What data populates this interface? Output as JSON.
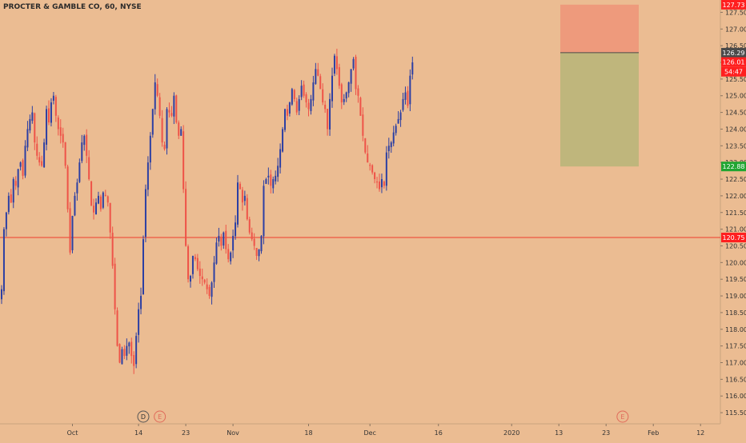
{
  "chart_data": {
    "type": "candlestick",
    "title": "PROCTER & GAMBLE CO, 60, NYSE",
    "ylim": [
      115.25,
      128.0
    ],
    "y_ticks": [
      "115.50",
      "116.00",
      "116.50",
      "117.00",
      "117.50",
      "118.00",
      "118.50",
      "119.00",
      "119.50",
      "120.00",
      "120.50",
      "121.00",
      "121.50",
      "122.00",
      "122.50",
      "123.00",
      "123.50",
      "124.00",
      "124.50",
      "125.00",
      "125.50",
      "126.00",
      "126.50",
      "127.00",
      "127.50"
    ],
    "x_ticks": [
      {
        "label": "Oct",
        "bar": 30
      },
      {
        "label": "14",
        "bar": 58
      },
      {
        "label": "23",
        "bar": 78
      },
      {
        "label": "Nov",
        "bar": 98
      },
      {
        "label": "18",
        "bar": 130
      },
      {
        "label": "Dec",
        "bar": 156
      },
      {
        "label": "16",
        "bar": 185
      },
      {
        "label": "2020",
        "bar": 216
      },
      {
        "label": "13",
        "bar": 236
      },
      {
        "label": "23",
        "bar": 256
      },
      {
        "label": "Feb",
        "bar": 276
      },
      {
        "label": "12",
        "bar": 296
      }
    ],
    "close_series": [
      119.2,
      121.0,
      121.5,
      122.0,
      121.8,
      122.5,
      122.3,
      122.8,
      123.0,
      122.6,
      123.5,
      124.0,
      124.3,
      124.5,
      123.6,
      123.2,
      123.0,
      122.9,
      123.6,
      124.6,
      124.2,
      124.8,
      125.0,
      124.4,
      124.0,
      123.8,
      123.6,
      122.9,
      121.6,
      120.3,
      121.4,
      122.0,
      122.4,
      123.0,
      123.6,
      123.8,
      123.2,
      122.5,
      121.7,
      121.5,
      121.8,
      122.0,
      121.6,
      122.1,
      122.0,
      121.8,
      120.9,
      119.9,
      118.6,
      117.5,
      117.0,
      117.4,
      117.2,
      117.5,
      117.6,
      117.2,
      116.9,
      117.8,
      118.6,
      119.0,
      120.7,
      122.2,
      123.0,
      123.8,
      124.6,
      125.4,
      125.0,
      124.4,
      123.6,
      123.4,
      124.6,
      124.5,
      124.4,
      125.0,
      124.2,
      123.8,
      124.0,
      122.2,
      120.5,
      119.5,
      119.6,
      120.2,
      120.1,
      119.8,
      119.6,
      119.5,
      119.4,
      119.2,
      119.0,
      119.4,
      120.0,
      120.6,
      120.8,
      120.5,
      120.9,
      120.4,
      120.1,
      120.3,
      120.8,
      121.2,
      122.4,
      122.2,
      121.8,
      122.0,
      121.3,
      120.9,
      120.7,
      120.5,
      120.2,
      120.4,
      120.8,
      122.3,
      122.5,
      122.6,
      122.3,
      122.5,
      122.6,
      122.9,
      123.4,
      124.0,
      124.6,
      124.4,
      124.8,
      125.2,
      124.9,
      124.5,
      124.9,
      125.3,
      125.0,
      124.8,
      124.6,
      124.9,
      125.4,
      125.8,
      125.6,
      125.2,
      124.8,
      124.6,
      124.0,
      124.9,
      125.6,
      126.2,
      125.8,
      125.3,
      124.8,
      124.9,
      125.1,
      125.4,
      125.8,
      126.1,
      125.2,
      125.0,
      124.4,
      123.8,
      123.3,
      123.0,
      122.9,
      122.7,
      122.5,
      122.4,
      122.2,
      122.5,
      122.3,
      123.3,
      123.5,
      123.6,
      123.9,
      124.1,
      124.3,
      124.5,
      124.9,
      125.1,
      124.7,
      125.6,
      126.0
    ],
    "horizontal_line": {
      "value": 120.75,
      "label": "120.75",
      "color": "#ef3b2c"
    },
    "price_labels": [
      {
        "label": "127.73",
        "value": 127.73,
        "color": "#ff1f1f"
      },
      {
        "label": "126.29",
        "value": 126.29,
        "color": "#4a4a4a"
      },
      {
        "label": "126.01",
        "value": 126.01,
        "color": "#ff1f1f"
      },
      {
        "label": "54:47",
        "value": 125.72,
        "color": "#ff1f1f"
      },
      {
        "label": "122.88",
        "value": 122.88,
        "color": "#21a532"
      },
      {
        "label": "120.75",
        "value": 120.75,
        "color": "#ff1f1f"
      }
    ],
    "position_tool": {
      "type": "short",
      "stop": 127.73,
      "entry": 126.29,
      "target": 122.88,
      "stop_color": "#ef9478",
      "target_color": "#bab57a"
    },
    "events": [
      {
        "label": "D",
        "bar": 60,
        "style": "dividend"
      },
      {
        "label": "E",
        "bar": 67,
        "style": "earnings"
      },
      {
        "label": "E",
        "bar": 263,
        "style": "earnings"
      }
    ],
    "colors": {
      "background": "#ebbc92",
      "up": "#2c3fa3",
      "down": "#ee5348",
      "axis_text": "#333333"
    }
  }
}
